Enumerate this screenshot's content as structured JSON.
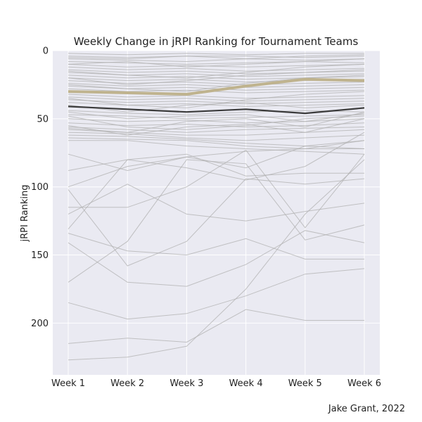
{
  "chart_data": {
    "type": "line",
    "title": "Weekly Change in jRPI Ranking for Tournament Teams",
    "xlabel": "",
    "ylabel": "jRPI Ranking",
    "categories": [
      "Week 1",
      "Week 2",
      "Week 3",
      "Week 4",
      "Week 5",
      "Week 6"
    ],
    "ylim": [
      0,
      238
    ],
    "y_inverted": true,
    "yticks": [
      0,
      50,
      100,
      150,
      200
    ],
    "grid": true,
    "background_colors": {
      "plot": "#eaeaf2",
      "grid": "#ffffff",
      "others": "#b0b0b0",
      "highlight_gold": "#bfb38e",
      "highlight_dark": "#3b3b3b"
    },
    "highlight_series": [
      {
        "values": [
          30,
          31,
          32,
          26,
          21,
          22
        ],
        "color": "#bfb38e"
      },
      {
        "values": [
          41,
          43,
          45,
          43,
          46,
          42
        ],
        "color": "#3b3b3b"
      }
    ],
    "other_series": [
      [
        2,
        3,
        2,
        3,
        2,
        2
      ],
      [
        4,
        5,
        4,
        4,
        5,
        4
      ],
      [
        6,
        7,
        8,
        6,
        7,
        6
      ],
      [
        8,
        9,
        10,
        9,
        8,
        9
      ],
      [
        10,
        12,
        11,
        12,
        11,
        10
      ],
      [
        12,
        14,
        13,
        15,
        14,
        13
      ],
      [
        14,
        16,
        15,
        17,
        16,
        15
      ],
      [
        16,
        18,
        17,
        19,
        18,
        17
      ],
      [
        18,
        20,
        19,
        21,
        20,
        19
      ],
      [
        20,
        22,
        21,
        23,
        22,
        21
      ],
      [
        22,
        24,
        23,
        25,
        24,
        23
      ],
      [
        24,
        26,
        25,
        27,
        26,
        25
      ],
      [
        26,
        28,
        27,
        29,
        28,
        27
      ],
      [
        28,
        30,
        29,
        31,
        30,
        29
      ],
      [
        32,
        34,
        33,
        35,
        34,
        33
      ],
      [
        34,
        36,
        35,
        37,
        36,
        35
      ],
      [
        36,
        38,
        37,
        39,
        38,
        37
      ],
      [
        38,
        40,
        39,
        41,
        40,
        39
      ],
      [
        44,
        46,
        47,
        45,
        44,
        45
      ],
      [
        47,
        48,
        50,
        49,
        48,
        47
      ],
      [
        50,
        52,
        51,
        53,
        52,
        50
      ],
      [
        53,
        55,
        54,
        56,
        55,
        53
      ],
      [
        56,
        58,
        60,
        58,
        57,
        56
      ],
      [
        58,
        60,
        62,
        62,
        60,
        58
      ],
      [
        60,
        61,
        64,
        66,
        64,
        62
      ],
      [
        62,
        63,
        65,
        68,
        70,
        66
      ],
      [
        64,
        65,
        66,
        70,
        72,
        72
      ],
      [
        66,
        66,
        70,
        72,
        74,
        76
      ],
      [
        55,
        62,
        56,
        54,
        60,
        50
      ],
      [
        57,
        60,
        52,
        50,
        56,
        45
      ],
      [
        48,
        56,
        58,
        55,
        50,
        48
      ],
      [
        45,
        50,
        48,
        47,
        52,
        46
      ],
      [
        40,
        45,
        40,
        38,
        42,
        40
      ],
      [
        35,
        40,
        42,
        36,
        32,
        30
      ],
      [
        25,
        28,
        30,
        24,
        20,
        18
      ],
      [
        20,
        25,
        22,
        18,
        16,
        14
      ],
      [
        15,
        18,
        20,
        16,
        12,
        10
      ],
      [
        10,
        8,
        12,
        10,
        8,
        6
      ],
      [
        5,
        6,
        4,
        6,
        4,
        3
      ],
      [
        76,
        88,
        78,
        74,
        72,
        66
      ],
      [
        88,
        80,
        86,
        95,
        85,
        60
      ],
      [
        100,
        85,
        78,
        86,
        70,
        72
      ],
      [
        115,
        115,
        100,
        73,
        130,
        76
      ],
      [
        102,
        158,
        140,
        94,
        98,
        94
      ],
      [
        120,
        98,
        120,
        125,
        118,
        112
      ],
      [
        131,
        80,
        76,
        92,
        90,
        90
      ],
      [
        134,
        147,
        150,
        138,
        153,
        153
      ],
      [
        141,
        170,
        173,
        157,
        132,
        141
      ],
      [
        170,
        140,
        80,
        83,
        139,
        128
      ],
      [
        185,
        197,
        193,
        180,
        164,
        160
      ],
      [
        215,
        211,
        214,
        190,
        198,
        198
      ],
      [
        227,
        225,
        217,
        175,
        120,
        80
      ]
    ],
    "credit": "Jake Grant, 2022"
  }
}
